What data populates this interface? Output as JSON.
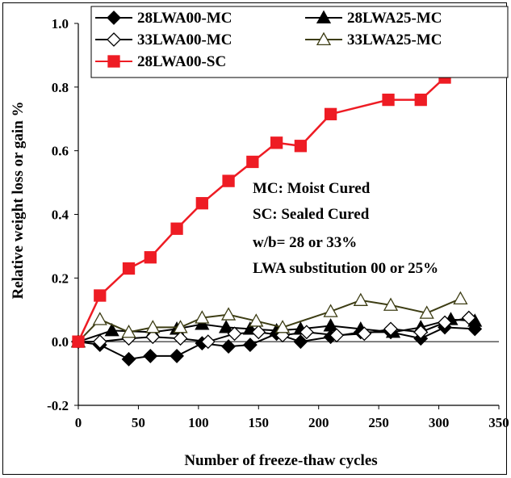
{
  "chart_data": {
    "type": "line",
    "xlabel": "Number of freeze-thaw cycles",
    "ylabel": "Relative weight loss or gain %",
    "xlim": [
      0,
      350
    ],
    "ylim": [
      -0.2,
      1.0
    ],
    "xticks": [
      0,
      50,
      100,
      150,
      200,
      250,
      300,
      350
    ],
    "yticks": [
      -0.2,
      0.0,
      0.2,
      0.4,
      0.6,
      0.8,
      1.0
    ],
    "xtick_labels": [
      "0",
      "50",
      "100",
      "150",
      "200",
      "250",
      "300",
      "350"
    ],
    "ytick_labels": [
      "-0.2",
      "0.0",
      "0.2",
      "0.4",
      "0.6",
      "0.8",
      "1.0"
    ],
    "grid": false,
    "legend_position": "top",
    "annotations": [
      "MC: Moist Cured",
      "SC: Sealed Cured",
      "w/b= 28 or 33%",
      "LWA substitution 00 or 25%"
    ],
    "series": [
      {
        "name": "28LWA00-MC",
        "marker": "diamond-filled",
        "color": "#000000",
        "x": [
          0,
          18,
          42,
          60,
          82,
          103,
          125,
          143,
          165,
          185,
          210,
          235,
          260,
          285,
          305,
          330
        ],
        "y": [
          0.0,
          -0.01,
          -0.055,
          -0.045,
          -0.045,
          -0.005,
          -0.015,
          -0.01,
          0.025,
          0.0,
          0.015,
          0.03,
          0.03,
          0.01,
          0.045,
          0.04
        ]
      },
      {
        "name": "28LWA25-MC",
        "marker": "triangle-filled",
        "color": "#000000",
        "x": [
          0,
          28,
          62,
          82,
          103,
          123,
          143,
          165,
          185,
          210,
          235,
          262,
          285,
          310,
          330
        ],
        "y": [
          0.0,
          0.035,
          0.03,
          0.04,
          0.055,
          0.045,
          0.04,
          0.035,
          0.04,
          0.05,
          0.04,
          0.03,
          0.045,
          0.07,
          0.065
        ]
      },
      {
        "name": "33LWA00-MC",
        "marker": "diamond-open",
        "color": "#000000",
        "x": [
          0,
          18,
          42,
          62,
          85,
          108,
          130,
          150,
          170,
          190,
          215,
          238,
          260,
          285,
          305,
          325
        ],
        "y": [
          0.0,
          0.0,
          0.01,
          0.015,
          0.01,
          0.0,
          0.025,
          0.03,
          0.02,
          0.03,
          0.02,
          0.025,
          0.04,
          0.03,
          0.06,
          0.075
        ]
      },
      {
        "name": "33LWA25-MC",
        "marker": "triangle-open",
        "color": "#3d3d14",
        "x": [
          0,
          18,
          42,
          62,
          85,
          103,
          125,
          148,
          170,
          210,
          235,
          260,
          290,
          318
        ],
        "y": [
          0.0,
          0.07,
          0.03,
          0.045,
          0.045,
          0.075,
          0.085,
          0.065,
          0.045,
          0.095,
          0.13,
          0.115,
          0.09,
          0.135
        ]
      },
      {
        "name": "28LWA00-SC",
        "marker": "square-filled",
        "color": "#ee1c24",
        "x": [
          0,
          18,
          42,
          60,
          82,
          103,
          125,
          145,
          165,
          185,
          210,
          258,
          285,
          305,
          330
        ],
        "y": [
          0.0,
          0.145,
          0.23,
          0.265,
          0.355,
          0.435,
          0.505,
          0.565,
          0.625,
          0.615,
          0.715,
          0.76,
          0.76,
          0.83,
          0.85
        ]
      }
    ]
  }
}
